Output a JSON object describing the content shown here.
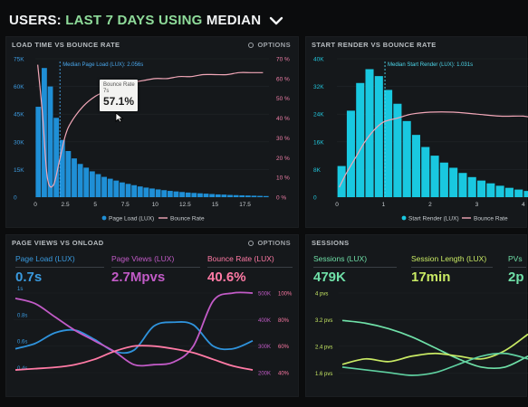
{
  "header": {
    "users": "USERS:",
    "range": "LAST 7 DAYS",
    "using": "USING",
    "statistic": "MEDIAN"
  },
  "panel_load_bounce": {
    "title": "LOAD TIME VS BOUNCE RATE",
    "options_label": "OPTIONS",
    "median_annotation": "Median Page Load (LUX): 2.056s",
    "tooltip_title": "Bounce Rate",
    "tooltip_subtitle": "7s",
    "tooltip_value": "57.1%",
    "left_ticks": [
      "75K",
      "60K",
      "45K",
      "30K",
      "15K",
      "0"
    ],
    "right_ticks": [
      "70 %",
      "60 %",
      "50 %",
      "40 %",
      "30 %",
      "20 %",
      "10 %",
      "0 %"
    ],
    "x_ticks": [
      "0",
      "2.5",
      "5",
      "7.5",
      "10",
      "12.5",
      "15",
      "17.5"
    ],
    "legend": {
      "bars": "Page Load (LUX)",
      "line": "Bounce Rate"
    }
  },
  "panel_render_bounce": {
    "title": "START RENDER VS BOUNCE RATE",
    "median_annotation": "Median Start Render (LUX): 1.031s",
    "left_ticks": [
      "40K",
      "32K",
      "24K",
      "16K",
      "8K",
      "0"
    ],
    "x_ticks": [
      "0",
      "1",
      "2",
      "3",
      "4"
    ],
    "legend": {
      "bars": "Start Render (LUX)",
      "line": "Bounce Rate"
    }
  },
  "panel_pageviews": {
    "title": "PAGE VIEWS VS ONLOAD",
    "options_label": "OPTIONS",
    "metrics": [
      {
        "label": "Page Load (LUX)",
        "value": "0.7s",
        "color": "#3a9be0"
      },
      {
        "label": "Page Views (LUX)",
        "value": "2.7Mpvs",
        "color": "#c25bc7"
      },
      {
        "label": "Bounce Rate (LUX)",
        "value": "40.6%",
        "color": "#ff7aa5"
      }
    ],
    "left_ticks": [
      "1s",
      "0.8s",
      "0.6s",
      "0.4s"
    ],
    "mid_ticks": [
      "500K",
      "400K",
      "300K",
      "200K"
    ],
    "right_ticks": [
      "100%",
      "80%",
      "60%",
      "40%"
    ]
  },
  "panel_sessions": {
    "title": "SESSIONS",
    "metrics": [
      {
        "label": "Sessions (LUX)",
        "value": "479K",
        "color": "#6fe0a8"
      },
      {
        "label": "Session Length (LUX)",
        "value": "17min",
        "color": "#c9ea64"
      },
      {
        "label": "PVs",
        "value": "2p",
        "color": "#6fe0a8"
      }
    ],
    "left_ticks": [
      "4 pvs",
      "3.2 pvs",
      "2.4 pvs",
      "1.6 pvs"
    ]
  },
  "colors": {
    "blue_bars": "#1f8fd6",
    "cyan_bars": "#19c8e0",
    "bounce_line": "#f2a7b8",
    "green_heading": "#8fdc9a"
  },
  "chart_data": [
    {
      "type": "bar",
      "title": "LOAD TIME VS BOUNCE RATE",
      "x": [
        0.25,
        0.75,
        1.25,
        1.75,
        2.25,
        2.75,
        3.25,
        3.75,
        4.25,
        4.75,
        5.25,
        5.75,
        6.25,
        6.75,
        7.25,
        7.75,
        8.25,
        8.75,
        9.25,
        9.75,
        10.25,
        10.75,
        11.25,
        11.75,
        12.25,
        12.75,
        13.25,
        13.75,
        14.25,
        14.75,
        15.25,
        15.75,
        16.25,
        16.75,
        17.25,
        17.75,
        18.25,
        18.75,
        19.25
      ],
      "series": [
        {
          "name": "Page Load (LUX)",
          "values": [
            49000,
            70000,
            60000,
            43000,
            31000,
            25000,
            21000,
            18000,
            16000,
            14000,
            12500,
            11000,
            10000,
            9000,
            8000,
            7200,
            6500,
            5800,
            5200,
            4700,
            4200,
            3800,
            3400,
            3100,
            2800,
            2500,
            2300,
            2100,
            1900,
            1700,
            1500,
            1400,
            1200,
            1100,
            1000,
            900,
            800,
            700,
            600
          ]
        },
        {
          "name": "Bounce Rate",
          "x": [
            0.2,
            0.6,
            1.0,
            1.5,
            2.0,
            2.5,
            3.0,
            4.0,
            5.0,
            6.0,
            7.0,
            8.0,
            9.0,
            10.0,
            11.0,
            12.0,
            13.0,
            14.0,
            15.0,
            16.0,
            17.0,
            18.0,
            19.0
          ],
          "values": [
            67,
            42,
            10,
            6,
            18,
            31,
            38,
            46,
            51,
            54,
            57,
            58,
            59,
            60,
            60,
            61,
            61,
            62,
            62,
            62,
            63,
            63,
            63
          ],
          "axis": "right"
        }
      ],
      "ylim": [
        0,
        75000
      ],
      "y2lim": [
        0,
        70
      ],
      "median_x": 2.056
    },
    {
      "type": "bar",
      "title": "START RENDER VS BOUNCE RATE",
      "x": [
        0.1,
        0.3,
        0.5,
        0.7,
        0.9,
        1.1,
        1.3,
        1.5,
        1.7,
        1.9,
        2.1,
        2.3,
        2.5,
        2.7,
        2.9,
        3.1,
        3.3,
        3.5,
        3.7,
        3.9,
        4.1
      ],
      "series": [
        {
          "name": "Start Render (LUX)",
          "values": [
            9000,
            25000,
            33000,
            37000,
            35000,
            31000,
            27000,
            22000,
            18000,
            14500,
            12000,
            10000,
            8500,
            7000,
            5800,
            4800,
            4000,
            3300,
            2700,
            2200,
            1800
          ]
        },
        {
          "name": "Bounce Rate",
          "x": [
            0.05,
            0.2,
            0.4,
            0.6,
            0.8,
            1.0,
            1.3,
            1.6,
            2.0,
            2.5,
            3.0,
            3.5,
            4.0,
            4.2
          ],
          "values": [
            5,
            12,
            20,
            28,
            34,
            38,
            40,
            42,
            43,
            43,
            42,
            41,
            41,
            40
          ],
          "axis": "right"
        }
      ],
      "ylim": [
        0,
        40000
      ],
      "median_x": 1.031
    },
    {
      "type": "line",
      "title": "PAGE VIEWS VS ONLOAD",
      "x": [
        0,
        1,
        2,
        3,
        4,
        5,
        6,
        7,
        8,
        9,
        10,
        11,
        12
      ],
      "series": [
        {
          "name": "Page Load (LUX)",
          "values": [
            0.58,
            0.62,
            0.7,
            0.72,
            0.65,
            0.56,
            0.57,
            0.75,
            0.78,
            0.76,
            0.6,
            0.58,
            0.64
          ],
          "axis": "left"
        },
        {
          "name": "Page Views (LUX)",
          "values": [
            480,
            460,
            410,
            360,
            320,
            280,
            230,
            230,
            240,
            300,
            470,
            500,
            500
          ],
          "axis": "mid"
        },
        {
          "name": "Bounce Rate (LUX)",
          "values": [
            42,
            43,
            44,
            46,
            50,
            56,
            60,
            60,
            58,
            55,
            50,
            45,
            42
          ],
          "axis": "right"
        }
      ],
      "ylim": [
        0.4,
        1.0
      ]
    },
    {
      "type": "line",
      "title": "SESSIONS",
      "x": [
        0,
        1,
        2,
        3,
        4,
        5,
        6,
        7,
        8
      ],
      "series": [
        {
          "name": "Sessions (LUX)",
          "values": [
            3.2,
            3.1,
            2.9,
            2.6,
            2.2,
            1.8,
            1.5,
            1.5,
            1.9
          ]
        },
        {
          "name": "Session Length (LUX)",
          "values": [
            1.6,
            1.8,
            1.7,
            1.9,
            2.0,
            1.9,
            1.8,
            2.1,
            2.7
          ]
        },
        {
          "name": "PVs",
          "values": [
            1.5,
            1.4,
            1.3,
            1.2,
            1.3,
            1.6,
            1.9,
            2.0,
            1.8
          ]
        }
      ],
      "ylim": [
        1.2,
        4.2
      ]
    }
  ]
}
